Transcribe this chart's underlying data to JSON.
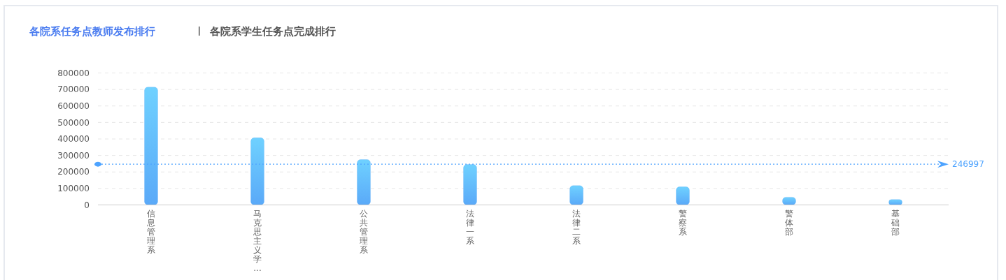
{
  "chart_data": {
    "type": "bar",
    "title": "各院系任务点教师发布排行",
    "subtitle": "各院系学生任务点完成排行",
    "categories": [
      "信息管理系",
      "马克思主义学...",
      "公共管理系",
      "法律一系",
      "法律二系",
      "警察系",
      "警体部",
      "基础部"
    ],
    "values": [
      714000,
      407000,
      275000,
      245000,
      117000,
      110000,
      47000,
      33000
    ],
    "color": "#5aa9f8",
    "ylim": [
      0,
      800000
    ],
    "yticks": [
      0,
      100000,
      200000,
      300000,
      400000,
      500000,
      600000,
      700000,
      800000
    ],
    "grid": "y",
    "ref_lines": [
      {
        "axis": "y",
        "value": 246997,
        "label": "246997",
        "color": "#4da3ff",
        "line_style": "dotted"
      }
    ]
  }
}
